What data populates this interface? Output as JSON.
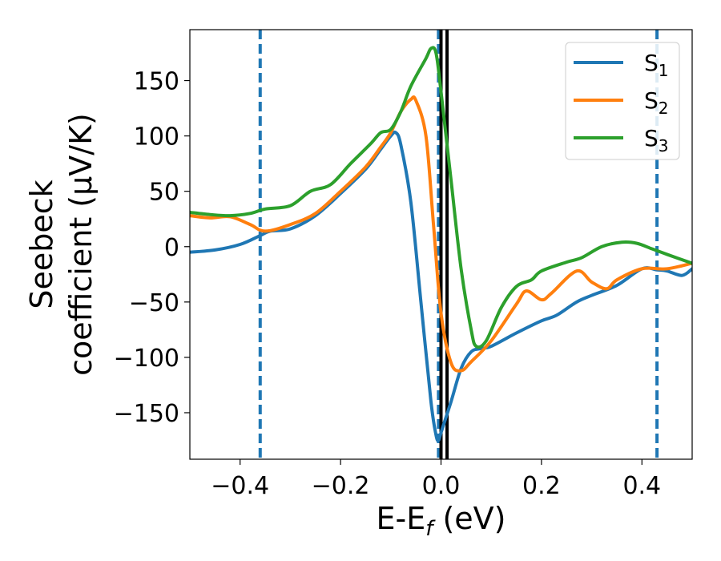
{
  "chart_data": {
    "type": "line",
    "xlabel": {
      "main": "E-E",
      "sub": "f",
      "unit": " (eV)"
    },
    "ylabel": {
      "line1": "Seebeck",
      "line2": "coefficient  (μV/K)"
    },
    "xlim": [
      -0.5,
      0.5
    ],
    "ylim": [
      -192,
      196
    ],
    "xticks": [
      -0.4,
      -0.2,
      0.0,
      0.2,
      0.4
    ],
    "xtick_labels": [
      "−0.4",
      "−0.2",
      "0.0",
      "0.2",
      "0.4"
    ],
    "yticks": [
      -150,
      -100,
      -50,
      0,
      50,
      100,
      150
    ],
    "ytick_labels": [
      "−150",
      "−100",
      "−50",
      "0",
      "50",
      "100",
      "150"
    ],
    "grid": false,
    "legend_position": "top-right",
    "series": [
      {
        "name": {
          "main": "S",
          "sub": "1"
        },
        "color": "#1f77b4",
        "points": [
          [
            -0.5,
            -5
          ],
          [
            -0.45,
            -3
          ],
          [
            -0.4,
            2
          ],
          [
            -0.36,
            10
          ],
          [
            -0.34,
            14
          ],
          [
            -0.3,
            16
          ],
          [
            -0.25,
            28
          ],
          [
            -0.2,
            48
          ],
          [
            -0.15,
            70
          ],
          [
            -0.12,
            88
          ],
          [
            -0.1,
            100
          ],
          [
            -0.09,
            103
          ],
          [
            -0.08,
            92
          ],
          [
            -0.06,
            40
          ],
          [
            -0.04,
            -50
          ],
          [
            -0.02,
            -140
          ],
          [
            -0.01,
            -170
          ],
          [
            -0.005,
            -175
          ],
          [
            0.0,
            -168
          ],
          [
            0.02,
            -140
          ],
          [
            0.04,
            -110
          ],
          [
            0.06,
            -95
          ],
          [
            0.08,
            -92
          ],
          [
            0.1,
            -90
          ],
          [
            0.15,
            -78
          ],
          [
            0.2,
            -67
          ],
          [
            0.23,
            -62
          ],
          [
            0.27,
            -50
          ],
          [
            0.3,
            -44
          ],
          [
            0.35,
            -35
          ],
          [
            0.4,
            -20
          ],
          [
            0.43,
            -21
          ],
          [
            0.45,
            -22
          ],
          [
            0.48,
            -26
          ],
          [
            0.5,
            -20
          ]
        ]
      },
      {
        "name": {
          "main": "S",
          "sub": "2"
        },
        "color": "#ff7f0e",
        "points": [
          [
            -0.5,
            28
          ],
          [
            -0.46,
            26
          ],
          [
            -0.42,
            27
          ],
          [
            -0.38,
            20
          ],
          [
            -0.35,
            14
          ],
          [
            -0.3,
            20
          ],
          [
            -0.25,
            30
          ],
          [
            -0.2,
            50
          ],
          [
            -0.15,
            72
          ],
          [
            -0.12,
            90
          ],
          [
            -0.1,
            103
          ],
          [
            -0.08,
            122
          ],
          [
            -0.06,
            133
          ],
          [
            -0.05,
            132
          ],
          [
            -0.03,
            100
          ],
          [
            -0.015,
            20
          ],
          [
            0.0,
            -60
          ],
          [
            0.02,
            -105
          ],
          [
            0.04,
            -112
          ],
          [
            0.06,
            -104
          ],
          [
            0.1,
            -85
          ],
          [
            0.15,
            -52
          ],
          [
            0.17,
            -40
          ],
          [
            0.2,
            -48
          ],
          [
            0.22,
            -42
          ],
          [
            0.27,
            -22
          ],
          [
            0.3,
            -32
          ],
          [
            0.33,
            -38
          ],
          [
            0.35,
            -30
          ],
          [
            0.4,
            -20
          ],
          [
            0.45,
            -20
          ],
          [
            0.5,
            -15
          ]
        ]
      },
      {
        "name": {
          "main": "S",
          "sub": "3"
        },
        "color": "#2ca02c",
        "points": [
          [
            -0.5,
            31
          ],
          [
            -0.46,
            29
          ],
          [
            -0.42,
            28
          ],
          [
            -0.38,
            30
          ],
          [
            -0.35,
            34
          ],
          [
            -0.3,
            37
          ],
          [
            -0.26,
            50
          ],
          [
            -0.22,
            56
          ],
          [
            -0.18,
            75
          ],
          [
            -0.14,
            93
          ],
          [
            -0.12,
            103
          ],
          [
            -0.1,
            106
          ],
          [
            -0.08,
            122
          ],
          [
            -0.06,
            145
          ],
          [
            -0.03,
            170
          ],
          [
            -0.02,
            179
          ],
          [
            -0.01,
            175
          ],
          [
            0.0,
            140
          ],
          [
            0.02,
            60
          ],
          [
            0.04,
            -20
          ],
          [
            0.06,
            -75
          ],
          [
            0.07,
            -90
          ],
          [
            0.09,
            -85
          ],
          [
            0.12,
            -55
          ],
          [
            0.15,
            -36
          ],
          [
            0.18,
            -30
          ],
          [
            0.2,
            -22
          ],
          [
            0.25,
            -14
          ],
          [
            0.28,
            -10
          ],
          [
            0.32,
            0
          ],
          [
            0.36,
            4
          ],
          [
            0.39,
            3
          ],
          [
            0.42,
            -2
          ],
          [
            0.45,
            -7
          ],
          [
            0.5,
            -15
          ]
        ]
      }
    ],
    "vlines": [
      {
        "x": -0.36,
        "style": "dashed",
        "color": "#1f77b4"
      },
      {
        "x": -0.005,
        "style": "dashed",
        "color": "#1f77b4"
      },
      {
        "x": 0.43,
        "style": "dashed",
        "color": "#1f77b4"
      },
      {
        "x": 0.0,
        "style": "solid",
        "color": "#000000"
      },
      {
        "x": 0.012,
        "style": "solid",
        "color": "#000000"
      }
    ]
  }
}
